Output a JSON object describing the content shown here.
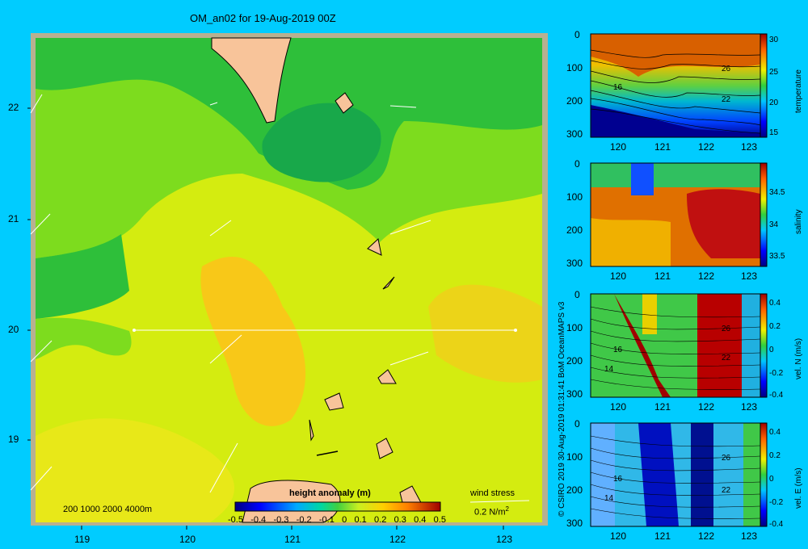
{
  "title": "OM_an02 for 19-Aug-2019 00Z",
  "credit": "© CSIRO 2019   30-Aug-2019 01:31:41  BoM OceanMAPS v3",
  "main_map": {
    "xticks": [
      "119",
      "120",
      "121",
      "122",
      "123"
    ],
    "yticks": [
      "22",
      "21",
      "20",
      "19"
    ],
    "depth_legend": "200  1000  2000  4000m",
    "colorbar_title": "height anomaly (m)",
    "colorbar_ticks": [
      "-0.5",
      "-0.4",
      "-0.3",
      "-0.2",
      "-0.1",
      "0",
      "0.1",
      "0.2",
      "0.3",
      "0.4",
      "0.5"
    ],
    "wind_label": "wind stress",
    "wind_unit": "0.2 N/m",
    "wind_unit_sup": "2"
  },
  "sections": [
    {
      "id": "temperature",
      "cb_label": "temperature",
      "cb_ticks": [
        "30",
        "25",
        "20",
        "15"
      ],
      "contour_labels": [
        "26",
        "22",
        "16"
      ]
    },
    {
      "id": "salinity",
      "cb_label": "salinity",
      "cb_ticks": [
        "34.5",
        "34",
        "33.5"
      ],
      "contour_labels": []
    },
    {
      "id": "veln",
      "cb_label": "vel. N (m/s)",
      "cb_ticks": [
        "0.4",
        "0.2",
        "0",
        "-0.2",
        "-0.4"
      ],
      "contour_labels": [
        "26",
        "22",
        "16",
        "14"
      ]
    },
    {
      "id": "vele",
      "cb_label": "vel. E (m/s)",
      "cb_ticks": [
        "0.4",
        "0.2",
        "0",
        "-0.2",
        "-0.4"
      ],
      "contour_labels": [
        "26",
        "22",
        "16",
        "14"
      ]
    }
  ],
  "section_xticks": [
    "120",
    "121",
    "122",
    "123"
  ],
  "section_yticks": [
    "0",
    "100",
    "200",
    "300"
  ],
  "chart_data": [
    {
      "type": "heatmap",
      "title": "OM_an02 for 19-Aug-2019 00Z",
      "field": "height anomaly (m)",
      "xlim": [
        118.5,
        123.5
      ],
      "ylim": [
        18.3,
        22.6
      ],
      "colorbar_range": [
        -0.5,
        0.5
      ],
      "section_line": {
        "x": [
          119.5,
          123.05
        ],
        "y": [
          20.0,
          20.0
        ]
      }
    },
    {
      "type": "heatmap",
      "field": "temperature",
      "xlim": [
        119.5,
        123.2
      ],
      "ylim": [
        300,
        0
      ],
      "colorbar_range": [
        15,
        30
      ]
    },
    {
      "type": "heatmap",
      "field": "salinity",
      "xlim": [
        119.5,
        123.2
      ],
      "ylim": [
        300,
        0
      ],
      "colorbar_range": [
        33.4,
        34.8
      ]
    },
    {
      "type": "heatmap",
      "field": "vel. N (m/s)",
      "xlim": [
        119.5,
        123.2
      ],
      "ylim": [
        300,
        0
      ],
      "colorbar_range": [
        -0.4,
        0.4
      ]
    },
    {
      "type": "heatmap",
      "field": "vel. E (m/s)",
      "xlim": [
        119.5,
        123.2
      ],
      "ylim": [
        300,
        0
      ],
      "colorbar_range": [
        -0.4,
        0.4
      ]
    }
  ]
}
